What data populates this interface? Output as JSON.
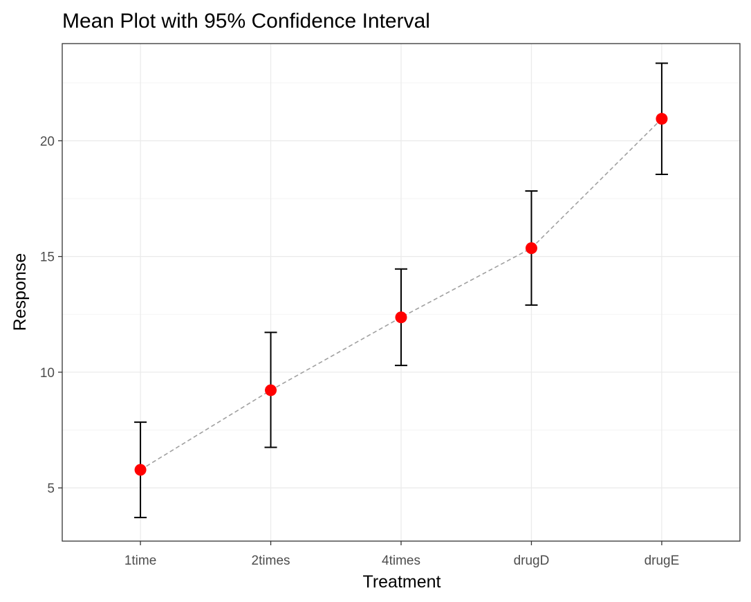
{
  "chart_data": {
    "type": "scatter",
    "title": "Mean Plot with 95% Confidence Interval",
    "xlabel": "Treatment",
    "ylabel": "Response",
    "categories": [
      "1time",
      "2times",
      "4times",
      "drugD",
      "drugE"
    ],
    "means": [
      5.78,
      9.22,
      12.37,
      15.36,
      20.95
    ],
    "ci_lower": [
      3.72,
      6.75,
      10.29,
      12.9,
      18.55
    ],
    "ci_upper": [
      7.84,
      11.72,
      14.46,
      17.83,
      23.35
    ],
    "y_ticks": [
      5,
      10,
      15,
      20
    ],
    "y_tick_labels": [
      "5",
      "10",
      "15",
      "20"
    ],
    "ylim": [
      2.7,
      24.2
    ],
    "grid": true,
    "connect_means": true,
    "colors": {
      "point": "#ff0000",
      "line": "#a0a0a0",
      "errorbar": "#000000"
    }
  }
}
